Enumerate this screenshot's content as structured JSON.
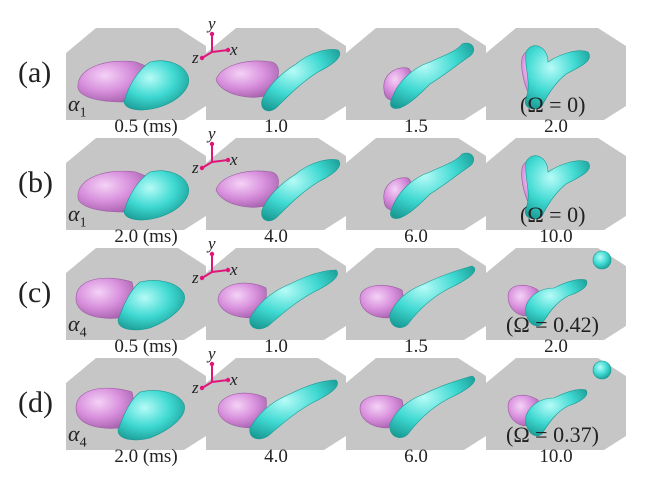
{
  "colors": {
    "plate": "#c6c6c6",
    "pink": "#d890dd",
    "cyan": "#3fd9d2",
    "axis": "#e0157a"
  },
  "axes": {
    "x": "x",
    "y": "y",
    "z": "z"
  },
  "rows": [
    {
      "label": "(a)",
      "alpha": "α",
      "alpha_sub": "1",
      "times": [
        "0.5 (ms)",
        "1.0",
        "1.5",
        "2.0"
      ],
      "omega": "(Ω = 0)"
    },
    {
      "label": "(b)",
      "alpha": "α",
      "alpha_sub": "1",
      "times": [
        "2.0 (ms)",
        "4.0",
        "6.0",
        "10.0"
      ],
      "omega": "(Ω = 0)"
    },
    {
      "label": "(c)",
      "alpha": "α",
      "alpha_sub": "4",
      "times": [
        "0.5 (ms)",
        "1.0",
        "1.5",
        "2.0"
      ],
      "omega": "(Ω = 0.42)"
    },
    {
      "label": "(d)",
      "alpha": "α",
      "alpha_sub": "4",
      "times": [
        "2.0 (ms)",
        "4.0",
        "6.0",
        "10.0"
      ],
      "omega": "(Ω = 0.37)"
    }
  ]
}
